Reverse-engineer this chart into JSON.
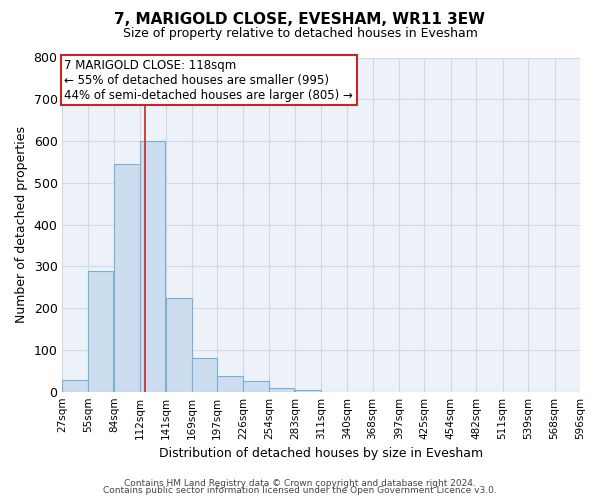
{
  "title": "7, MARIGOLD CLOSE, EVESHAM, WR11 3EW",
  "subtitle": "Size of property relative to detached houses in Evesham",
  "xlabel": "Distribution of detached houses by size in Evesham",
  "ylabel": "Number of detached properties",
  "bar_left_edges": [
    27,
    55,
    84,
    112,
    141,
    169,
    197,
    226,
    254,
    283,
    311,
    340,
    368,
    397,
    425,
    454,
    482,
    511,
    539,
    568
  ],
  "bar_heights": [
    28,
    290,
    545,
    600,
    225,
    80,
    38,
    25,
    10,
    5,
    0,
    0,
    0,
    0,
    0,
    0,
    0,
    0,
    0,
    0
  ],
  "bin_width": 28,
  "bar_facecolor": "#ccddf0",
  "bar_edgecolor": "#7aafd4",
  "property_size": 118,
  "vline_color": "#cc2222",
  "annotation_box_edgecolor": "#cc2222",
  "annotation_line1": "7 MARIGOLD CLOSE: 118sqm",
  "annotation_line2": "← 55% of detached houses are smaller (995)",
  "annotation_line3": "44% of semi-detached houses are larger (805) →",
  "ylim": [
    0,
    800
  ],
  "yticks": [
    0,
    100,
    200,
    300,
    400,
    500,
    600,
    700,
    800
  ],
  "x_tick_labels": [
    "27sqm",
    "55sqm",
    "84sqm",
    "112sqm",
    "141sqm",
    "169sqm",
    "197sqm",
    "226sqm",
    "254sqm",
    "283sqm",
    "311sqm",
    "340sqm",
    "368sqm",
    "397sqm",
    "425sqm",
    "454sqm",
    "482sqm",
    "511sqm",
    "539sqm",
    "568sqm",
    "596sqm"
  ],
  "grid_color": "#d0d8e8",
  "bg_color": "#edf2f9",
  "footer_line1": "Contains HM Land Registry data © Crown copyright and database right 2024.",
  "footer_line2": "Contains public sector information licensed under the Open Government Licence v3.0."
}
